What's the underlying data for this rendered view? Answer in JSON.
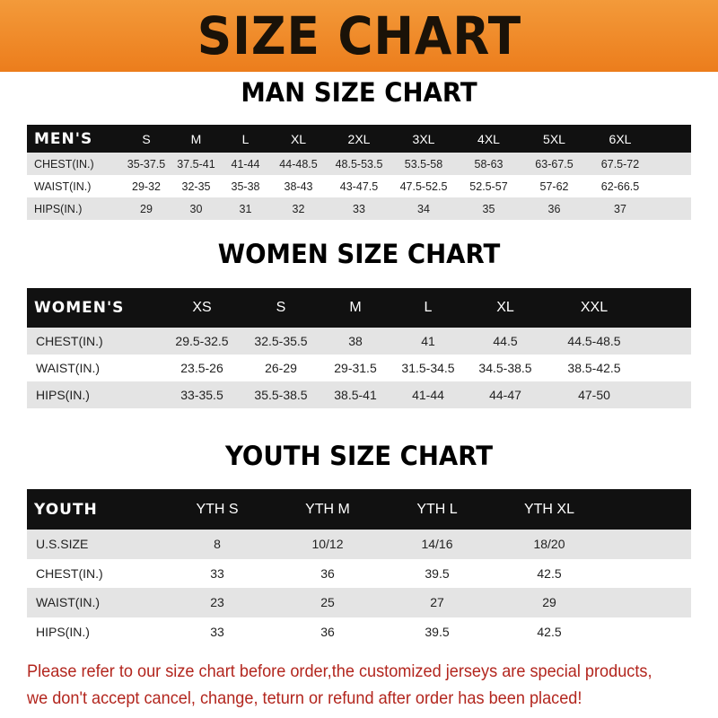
{
  "title": "SIZE CHART",
  "colors": {
    "banner": "#ec7d1c",
    "header_row": "#111111",
    "stripe": "#e4e4e4",
    "note": "#b3261e"
  },
  "men": {
    "heading": "MAN SIZE CHART",
    "header": [
      "MEN'S",
      "S",
      "M",
      "L",
      "XL",
      "2XL",
      "3XL",
      "4XL",
      "5XL",
      "6XL"
    ],
    "rows": [
      [
        "CHEST(IN.)",
        "35-37.5",
        "37.5-41",
        "41-44",
        "44-48.5",
        "48.5-53.5",
        "53.5-58",
        "58-63",
        "63-67.5",
        "67.5-72"
      ],
      [
        "WAIST(IN.)",
        "29-32",
        "32-35",
        "35-38",
        "38-43",
        "43-47.5",
        "47.5-52.5",
        "52.5-57",
        "57-62",
        "62-66.5"
      ],
      [
        "HIPS(IN.)",
        "29",
        "30",
        "31",
        "32",
        "33",
        "34",
        "35",
        "36",
        "37"
      ]
    ]
  },
  "women": {
    "heading": "WOMEN SIZE CHART",
    "header": [
      "WOMEN'S",
      "XS",
      "S",
      "M",
      "L",
      "XL",
      "XXL"
    ],
    "rows": [
      [
        "CHEST(IN.)",
        "29.5-32.5",
        "32.5-35.5",
        "38",
        "41",
        "44.5",
        "44.5-48.5"
      ],
      [
        "WAIST(IN.)",
        "23.5-26",
        "26-29",
        "29-31.5",
        "31.5-34.5",
        "34.5-38.5",
        "38.5-42.5"
      ],
      [
        "HIPS(IN.)",
        "33-35.5",
        "35.5-38.5",
        "38.5-41",
        "41-44",
        "44-47",
        "47-50"
      ]
    ]
  },
  "youth": {
    "heading": "YOUTH SIZE CHART",
    "header": [
      "YOUTH",
      "YTH S",
      "YTH M",
      "YTH L",
      "YTH XL"
    ],
    "rows": [
      [
        "U.S.SIZE",
        "8",
        "10/12",
        "14/16",
        "18/20"
      ],
      [
        "CHEST(IN.)",
        "33",
        "36",
        "39.5",
        "42.5"
      ],
      [
        "WAIST(IN.)",
        "23",
        "25",
        "27",
        "29"
      ],
      [
        "HIPS(IN.)",
        "33",
        "36",
        "39.5",
        "42.5"
      ]
    ]
  },
  "note": {
    "line1": "Please refer to our size chart before order,the customized jerseys are special products,",
    "line2": "we don't accept cancel, change, teturn or refund after order has been placed!"
  }
}
